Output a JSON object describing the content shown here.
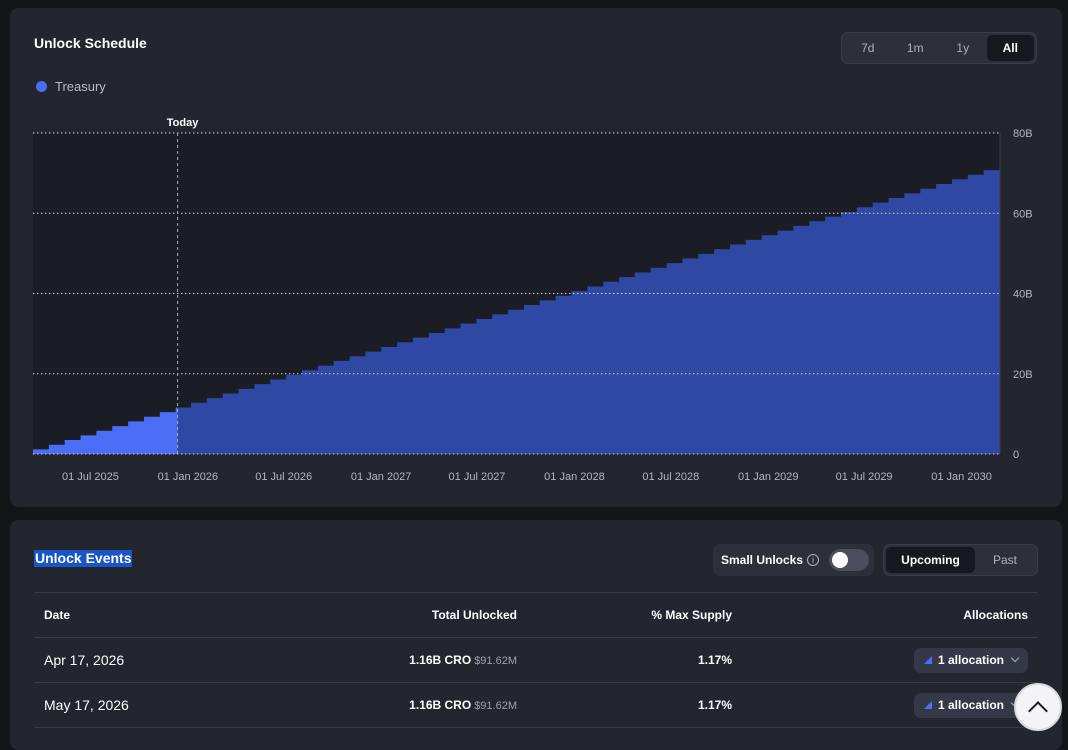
{
  "schedule": {
    "title": "Unlock Schedule",
    "ranges": [
      {
        "label": "7d",
        "active": false
      },
      {
        "label": "1m",
        "active": false
      },
      {
        "label": "1y",
        "active": false
      },
      {
        "label": "All",
        "active": true
      }
    ],
    "legend": [
      {
        "label": "Treasury",
        "color": "#4b6cf5"
      }
    ]
  },
  "chart_data": {
    "type": "area",
    "step": true,
    "series": [
      {
        "name": "Treasury",
        "color": "#4b6cf5",
        "future_color": "#2f48a3"
      }
    ],
    "x_start": "2025-06-17",
    "x_end": "2030-06-17",
    "today": "2026-03-17",
    "today_label": "Today",
    "step_interval": "monthly",
    "monthly_unlock_b": 1.16,
    "values_b": [
      1.16,
      2.32,
      3.48,
      4.64,
      5.8,
      6.96,
      8.12,
      9.28,
      10.44,
      11.6,
      12.76,
      13.92,
      15.08,
      16.24,
      17.4,
      18.56,
      19.72,
      20.88,
      22.04,
      23.2,
      24.36,
      25.52,
      26.68,
      27.84,
      29.0,
      30.16,
      31.32,
      32.48,
      33.64,
      34.8,
      35.96,
      37.12,
      38.28,
      39.44,
      40.6,
      41.76,
      42.92,
      44.08,
      45.24,
      46.4,
      47.56,
      48.72,
      49.88,
      51.04,
      52.2,
      53.36,
      54.52,
      55.68,
      56.84,
      58.0,
      59.16,
      60.32,
      61.48,
      62.64,
      63.8,
      64.96,
      66.12,
      67.28,
      68.44,
      69.6,
      70.76
    ],
    "x_ticks": [
      "01 Jul 2025",
      "01 Jan 2026",
      "01 Jul 2026",
      "01 Jan 2027",
      "01 Jul 2027",
      "01 Jan 2028",
      "01 Jul 2028",
      "01 Jan 2029",
      "01 Jul 2029",
      "01 Jan 2030"
    ],
    "y_ticks": [
      "0",
      "20B",
      "40B",
      "60B",
      "80B"
    ],
    "ylim": [
      0,
      80
    ],
    "grid": true
  },
  "events": {
    "title": "Unlock Events",
    "small_unlocks_label": "Small Unlocks",
    "info_icon": "i",
    "small_unlocks_on": false,
    "tabs": [
      {
        "label": "Upcoming",
        "active": true
      },
      {
        "label": "Past",
        "active": false
      }
    ],
    "columns": [
      "Date",
      "Total Unlocked",
      "% Max Supply",
      "Allocations"
    ],
    "rows": [
      {
        "date": "Apr 17, 2026",
        "cro": "1.16B CRO",
        "usd": "$91.62M",
        "pct": "1.17%",
        "alloc": "1 allocation"
      },
      {
        "date": "May 17, 2026",
        "cro": "1.16B CRO",
        "usd": "$91.62M",
        "pct": "1.17%",
        "alloc": "1 allocation"
      }
    ]
  }
}
